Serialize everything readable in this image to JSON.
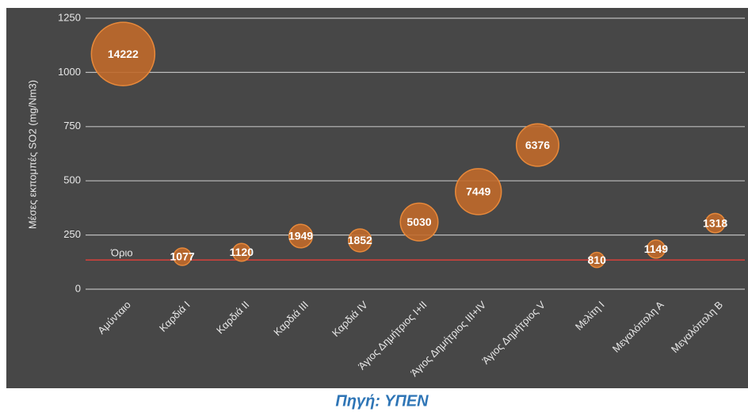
{
  "chart_data": {
    "type": "bubble",
    "ylabel": "Μέσες εκπομπές SO2 (mg/Nm3)",
    "categories": [
      "Αμύνταιο",
      "Καρδιά Ι",
      "Καρδιά ΙΙ",
      "Καρδιά ΙΙΙ",
      "Καρδιά ΙV",
      "Άγιος Δημήτριος Ι+ΙΙ",
      "Άγιος Δημήτριος ΙΙΙ+ΙV",
      "Άγιος Δημήτριος V",
      "Μελίτη Ι",
      "Μεγαλόπολη Α",
      "Μεγαλόπολη Β"
    ],
    "values": [
      1085,
      150,
      170,
      245,
      225,
      310,
      450,
      665,
      135,
      185,
      305
    ],
    "sizes": [
      14222,
      1077,
      1120,
      1949,
      1852,
      5030,
      7449,
      6376,
      810,
      1149,
      1318
    ],
    "color": "#c0692a",
    "ylim": [
      0,
      1250
    ],
    "yticks": [
      0,
      250,
      500,
      750,
      1000,
      1250
    ],
    "grid": true,
    "limit": {
      "label": "Όριο",
      "value": 135,
      "color": "#d9403a"
    },
    "source": "Πηγή: ΥΠΕΝ"
  }
}
